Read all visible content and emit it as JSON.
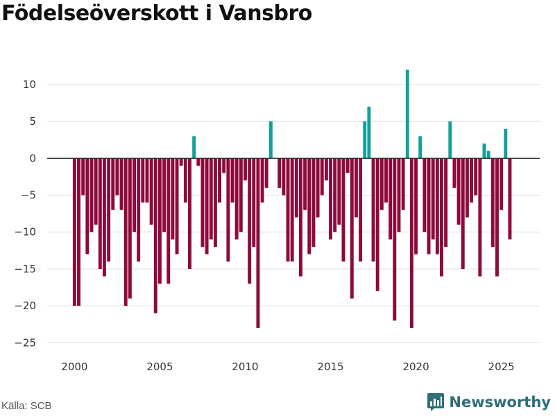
{
  "title": "Födelseöverskott i Vansbro",
  "source": "Källa: SCB",
  "brand": {
    "name": "Newsworthy",
    "icon": "newsworthy-logo-icon"
  },
  "colors": {
    "positive": "#12a19a",
    "negative": "#8e0a3c",
    "zero_line": "#333333",
    "grid": "#dddddd",
    "brand": "#2f6e7a"
  },
  "chart_data": {
    "type": "bar",
    "title": "Födelseöverskott i Vansbro",
    "xlabel": "",
    "ylabel": "",
    "ylim": [
      -26,
      13
    ],
    "xlim": [
      1998.4,
      2027.25
    ],
    "yticks": [
      10,
      5,
      0,
      -5,
      -10,
      -15,
      -20,
      -25
    ],
    "ytick_labels": [
      "10",
      "5",
      "0",
      "−5",
      "−10",
      "−15",
      "−20",
      "−25"
    ],
    "xticks": [
      2000,
      2005,
      2010,
      2015,
      2020,
      2025
    ],
    "xtick_labels": [
      "2000",
      "2005",
      "2010",
      "2015",
      "2020",
      "2025"
    ],
    "period": "quarterly",
    "start": 2000.0,
    "step": 0.25,
    "values": [
      -20,
      -20,
      -5,
      -13,
      -10,
      -9,
      -15,
      -16,
      -14,
      -7,
      -5,
      -7,
      -20,
      -19,
      -10,
      -14,
      -6,
      -6,
      -9,
      -21,
      -17,
      -10,
      -17,
      -11,
      -13,
      -1,
      -6,
      -15,
      3,
      -1,
      -12,
      -13,
      -11,
      -12,
      -6,
      -2,
      -14,
      -6,
      -11,
      -10,
      -3,
      -17,
      -12,
      -23,
      -6,
      -4,
      5,
      0,
      -4,
      -5,
      -14,
      -14,
      -8,
      -16,
      -7,
      -13,
      -12,
      -8,
      -5,
      -3,
      -11,
      -10,
      -9,
      -14,
      -2,
      -19,
      -8,
      -14,
      5,
      7,
      -14,
      -18,
      -7,
      -6,
      -11,
      -22,
      -10,
      -7,
      12,
      -23,
      -13,
      3,
      -10,
      -13,
      -11,
      -13,
      -16,
      -12,
      5,
      -4,
      -9,
      -15,
      -8,
      -6,
      -5,
      -16,
      2,
      1,
      -12,
      -16,
      -7,
      4,
      -11
    ]
  }
}
